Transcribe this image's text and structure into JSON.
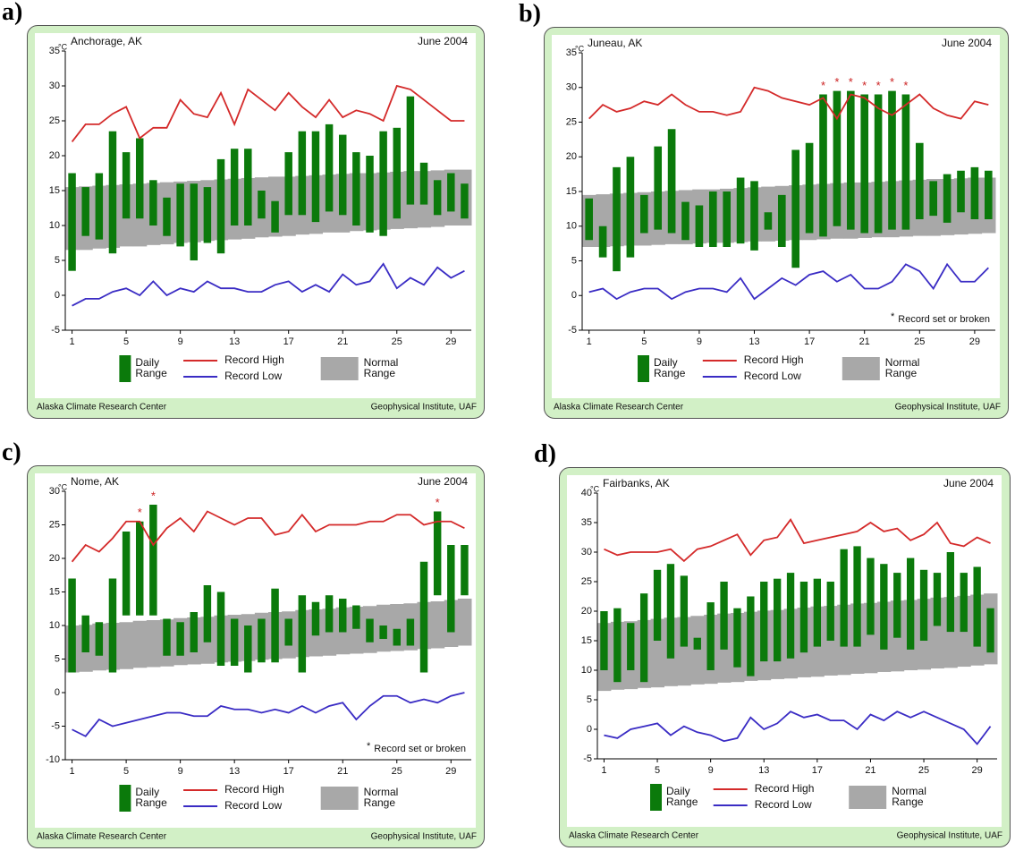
{
  "chart_data": [
    {
      "type": "range",
      "panel": "a)",
      "title": "Anchorage, AK",
      "date": "June 2004",
      "unit": "°C",
      "x": [
        1,
        2,
        3,
        4,
        5,
        6,
        7,
        8,
        9,
        10,
        11,
        12,
        13,
        14,
        15,
        16,
        17,
        18,
        19,
        20,
        21,
        22,
        23,
        24,
        25,
        26,
        27,
        28,
        29,
        30
      ],
      "xlim": [
        0.5,
        30.5
      ],
      "xticks": [
        1,
        5,
        9,
        13,
        17,
        21,
        25,
        29
      ],
      "ylim": [
        -5,
        35
      ],
      "yticks": [
        -5,
        0,
        5,
        10,
        15,
        20,
        25,
        30,
        35
      ],
      "series": [
        {
          "name": "Daily Range",
          "color": "#0b7a0b",
          "low": [
            3.5,
            8.5,
            8,
            6,
            11,
            11,
            10,
            8.5,
            7,
            5,
            7.5,
            6,
            10,
            10,
            11,
            9,
            11.5,
            11.5,
            10.5,
            12,
            11.5,
            10,
            9,
            8.5,
            11,
            13,
            13,
            11.5,
            12,
            11
          ],
          "high": [
            17.5,
            15.5,
            17.5,
            23.5,
            20.5,
            22.5,
            16.5,
            14,
            16,
            16,
            15.5,
            19.5,
            21,
            21,
            15,
            13.5,
            20.5,
            23.5,
            23.5,
            24.5,
            23,
            20.5,
            20,
            23.5,
            24,
            28.5,
            19,
            16.5,
            17.5,
            16
          ]
        },
        {
          "name": "Record High",
          "color": "#d42a2a",
          "values": [
            22,
            24.5,
            24.5,
            26,
            27,
            22.5,
            24,
            24,
            28,
            26,
            25.5,
            29,
            24.5,
            29.5,
            28,
            26.5,
            29,
            27,
            25.5,
            28,
            25.5,
            26.5,
            26,
            25,
            30,
            29.5,
            28,
            26.5,
            25,
            25
          ]
        },
        {
          "name": "Record Low",
          "color": "#3a2cc4",
          "values": [
            -1.5,
            -0.5,
            -0.5,
            0.5,
            1,
            0,
            2,
            0,
            1,
            0.5,
            2,
            1,
            1,
            0.5,
            0.5,
            1.5,
            2,
            0.5,
            1.5,
            0.5,
            3,
            1.5,
            2,
            4.5,
            1,
            2.5,
            1.5,
            4,
            2.5,
            3.5
          ]
        },
        {
          "name": "Normal Range",
          "color": "#a8a8a8",
          "low": [
            6.5,
            6.5,
            6.7,
            6.8,
            7,
            7,
            7.2,
            7.3,
            7.5,
            7.6,
            7.8,
            7.9,
            8,
            8.1,
            8.3,
            8.4,
            8.5,
            8.7,
            8.8,
            9,
            9,
            9.2,
            9.3,
            9.4,
            9.5,
            9.6,
            9.7,
            9.8,
            10,
            10
          ],
          "high": [
            15.5,
            15.6,
            15.7,
            15.8,
            15.9,
            16,
            16.1,
            16.2,
            16.3,
            16.4,
            16.5,
            16.6,
            16.7,
            16.8,
            16.9,
            17,
            17,
            17.1,
            17.2,
            17.3,
            17.4,
            17.5,
            17.5,
            17.6,
            17.7,
            17.8,
            17.8,
            17.9,
            18,
            18
          ]
        }
      ],
      "footer_left": "Alaska Climate Research Center",
      "footer_right": "Geophysical Institute, UAF"
    },
    {
      "type": "range",
      "panel": "b)",
      "title": "Juneau, AK",
      "date": "June 2004",
      "unit": "°C",
      "x": [
        1,
        2,
        3,
        4,
        5,
        6,
        7,
        8,
        9,
        10,
        11,
        12,
        13,
        14,
        15,
        16,
        17,
        18,
        19,
        20,
        21,
        22,
        23,
        24,
        25,
        26,
        27,
        28,
        29,
        30
      ],
      "xlim": [
        0.5,
        30.5
      ],
      "xticks": [
        1,
        5,
        9,
        13,
        17,
        21,
        25,
        29
      ],
      "ylim": [
        -5,
        35
      ],
      "yticks": [
        -5,
        0,
        5,
        10,
        15,
        20,
        25,
        30,
        35
      ],
      "series": [
        {
          "name": "Daily Range",
          "color": "#0b7a0b",
          "low": [
            8,
            5.5,
            3.5,
            5.5,
            9,
            9.5,
            9,
            8,
            7,
            7,
            7,
            7.5,
            6.5,
            9.5,
            7,
            4,
            9,
            8.5,
            10,
            9.5,
            9,
            9,
            9.5,
            9.5,
            11,
            11.5,
            10.5,
            12,
            11,
            11
          ],
          "high": [
            14,
            10,
            18.5,
            20,
            14.5,
            21.5,
            24,
            13.5,
            13,
            15,
            15,
            17,
            16.5,
            12,
            14.5,
            21,
            22,
            29,
            29.5,
            29.5,
            29,
            29,
            29.5,
            29,
            22,
            16.5,
            17.5,
            18,
            18.5,
            18
          ]
        },
        {
          "name": "Record High",
          "color": "#d42a2a",
          "values": [
            25.5,
            27.5,
            26.5,
            27,
            28,
            27.5,
            29,
            27.5,
            26.5,
            26.5,
            26,
            26.5,
            30,
            29.5,
            28.5,
            28,
            27.5,
            28.5,
            25.5,
            29,
            28.5,
            27,
            26,
            27.5,
            29,
            27,
            26,
            25.5,
            28,
            27.5
          ]
        },
        {
          "name": "Record Low",
          "color": "#3a2cc4",
          "values": [
            0.5,
            1,
            -0.5,
            0.5,
            1,
            1,
            -0.5,
            0.5,
            1,
            1,
            0.5,
            2.5,
            -0.5,
            1,
            2.5,
            1.5,
            3,
            3.5,
            2,
            3,
            1,
            1,
            2,
            4.5,
            3.5,
            1,
            4.5,
            2,
            2,
            4
          ]
        },
        {
          "name": "Normal Range",
          "color": "#a8a8a8",
          "low": [
            7,
            7,
            7.1,
            7.2,
            7.2,
            7.3,
            7.4,
            7.4,
            7.5,
            7.6,
            7.6,
            7.7,
            7.8,
            7.8,
            7.9,
            8,
            8,
            8.1,
            8.2,
            8.2,
            8.3,
            8.4,
            8.4,
            8.5,
            8.6,
            8.6,
            8.7,
            8.8,
            8.9,
            9
          ],
          "high": [
            14.5,
            14.6,
            14.7,
            14.8,
            14.9,
            15,
            15.1,
            15.2,
            15.3,
            15.3,
            15.4,
            15.5,
            15.6,
            15.7,
            15.8,
            15.9,
            16,
            16.1,
            16.2,
            16.3,
            16.3,
            16.4,
            16.5,
            16.6,
            16.7,
            16.8,
            16.8,
            16.9,
            17,
            17
          ]
        }
      ],
      "record_symbol": "*",
      "record_days": [
        18,
        19,
        20,
        21,
        22,
        23,
        24
      ],
      "note": "Record set or broken",
      "footer_left": "Alaska Climate Research Center",
      "footer_right": "Geophysical Institute, UAF"
    },
    {
      "type": "range",
      "panel": "c)",
      "title": "Nome, AK",
      "date": "June 2004",
      "unit": "°C",
      "x": [
        1,
        2,
        3,
        4,
        5,
        6,
        7,
        8,
        9,
        10,
        11,
        12,
        13,
        14,
        15,
        16,
        17,
        18,
        19,
        20,
        21,
        22,
        23,
        24,
        25,
        26,
        27,
        28,
        29,
        30
      ],
      "xlim": [
        0.5,
        30.5
      ],
      "xticks": [
        1,
        5,
        9,
        13,
        17,
        21,
        25,
        29
      ],
      "ylim": [
        -10,
        30
      ],
      "yticks": [
        -10,
        -5,
        0,
        5,
        10,
        15,
        20,
        25,
        30
      ],
      "series": [
        {
          "name": "Daily Range",
          "color": "#0b7a0b",
          "low": [
            3,
            6,
            5.5,
            3,
            11.5,
            11.5,
            11.5,
            5.5,
            5.5,
            6,
            7.5,
            4,
            4,
            3,
            4.5,
            4.5,
            7,
            3,
            8.5,
            9,
            9,
            9.5,
            7.5,
            8,
            7,
            7,
            3,
            14.5,
            9,
            14.5
          ],
          "high": [
            17,
            11.5,
            10.5,
            17,
            24,
            25.5,
            28,
            11,
            10.5,
            12,
            16,
            15,
            11,
            10,
            11,
            15.5,
            11,
            14.5,
            13.5,
            14.5,
            14,
            13,
            11,
            10,
            9.5,
            11,
            19.5,
            27,
            22,
            22
          ]
        },
        {
          "name": "Record High",
          "color": "#d42a2a",
          "values": [
            19.5,
            22,
            21,
            23,
            25.5,
            25.5,
            22,
            24.5,
            26,
            24,
            27,
            26,
            25,
            26,
            26,
            23.5,
            24,
            26.5,
            24,
            25,
            25,
            25,
            25.5,
            25.5,
            26.5,
            26.5,
            25,
            25.5,
            25.5,
            24.5
          ]
        },
        {
          "name": "Record Low",
          "color": "#3a2cc4",
          "values": [
            -5.5,
            -6.5,
            -4,
            -5,
            -4.5,
            -4,
            -3.5,
            -3,
            -3,
            -3.5,
            -3.5,
            -2,
            -2.5,
            -2.5,
            -3,
            -2.5,
            -3,
            -2,
            -3,
            -2,
            -1.5,
            -4,
            -2,
            -0.5,
            -0.5,
            -1.5,
            -1,
            -1.5,
            -0.5,
            0
          ]
        },
        {
          "name": "Normal Range",
          "color": "#a8a8a8",
          "low": [
            3,
            3.1,
            3.3,
            3.4,
            3.5,
            3.7,
            3.8,
            3.9,
            4.1,
            4.2,
            4.3,
            4.5,
            4.6,
            4.7,
            4.9,
            5,
            5.1,
            5.3,
            5.4,
            5.5,
            5.7,
            5.8,
            5.9,
            6.1,
            6.2,
            6.3,
            6.5,
            6.6,
            6.8,
            7
          ],
          "high": [
            10,
            10.1,
            10.3,
            10.4,
            10.5,
            10.7,
            10.8,
            10.9,
            11.1,
            11.2,
            11.3,
            11.5,
            11.6,
            11.7,
            11.9,
            12,
            12.1,
            12.3,
            12.4,
            12.5,
            12.7,
            12.8,
            12.9,
            13.1,
            13.2,
            13.3,
            13.5,
            13.6,
            13.8,
            14
          ]
        }
      ],
      "record_symbol": "*",
      "record_days": [
        6,
        7,
        28
      ],
      "note": "Record set or broken",
      "footer_left": "Alaska Climate Research Center",
      "footer_right": "Geophysical Institute, UAF"
    },
    {
      "type": "range",
      "panel": "d)",
      "title": "Fairbanks, AK",
      "date": "June 2004",
      "unit": "°C",
      "x": [
        1,
        2,
        3,
        4,
        5,
        6,
        7,
        8,
        9,
        10,
        11,
        12,
        13,
        14,
        15,
        16,
        17,
        18,
        19,
        20,
        21,
        22,
        23,
        24,
        25,
        26,
        27,
        28,
        29,
        30
      ],
      "xlim": [
        0.5,
        30.5
      ],
      "xticks": [
        1,
        5,
        9,
        13,
        17,
        21,
        25,
        29
      ],
      "ylim": [
        -5,
        40
      ],
      "yticks": [
        -5,
        0,
        5,
        10,
        15,
        20,
        25,
        30,
        35,
        40
      ],
      "series": [
        {
          "name": "Daily Range",
          "color": "#0b7a0b",
          "low": [
            10,
            8,
            10,
            8,
            15,
            12,
            14,
            13.5,
            10,
            13.5,
            10.5,
            9,
            11.5,
            11.5,
            12,
            13,
            14,
            15,
            14,
            14,
            16,
            13.5,
            15.5,
            13.5,
            15,
            17.5,
            16.5,
            16.5,
            14,
            13
          ],
          "high": [
            20,
            20.5,
            18,
            23,
            27,
            28,
            26,
            15.5,
            21.5,
            25,
            20.5,
            22.5,
            25,
            25.5,
            26.5,
            25,
            25.5,
            25,
            30.5,
            31,
            29,
            28,
            26.5,
            29,
            27,
            26.5,
            30,
            26.5,
            27.5,
            20.5
          ]
        },
        {
          "name": "Record High",
          "color": "#d42a2a",
          "values": [
            30.5,
            29.5,
            30,
            30,
            30,
            30.5,
            28.5,
            30.5,
            31,
            32,
            33,
            29.5,
            32,
            32.5,
            35.5,
            31.5,
            32,
            32.5,
            33,
            33.5,
            35,
            33.5,
            34,
            32,
            33,
            35,
            31.5,
            31,
            32.5,
            31.5
          ]
        },
        {
          "name": "Record Low",
          "color": "#3a2cc4",
          "values": [
            -1,
            -1.5,
            0,
            0.5,
            1,
            -1,
            0.5,
            -0.5,
            -1,
            -2,
            -1.5,
            2,
            0,
            1,
            3,
            2,
            2.5,
            1.5,
            1.5,
            0,
            2.5,
            1.5,
            3,
            2,
            3,
            2,
            1,
            0,
            -2.5,
            0.5
          ]
        },
        {
          "name": "Normal Range",
          "color": "#a8a8a8",
          "low": [
            6.5,
            6.7,
            6.8,
            7,
            7.1,
            7.3,
            7.4,
            7.6,
            7.7,
            7.9,
            8,
            8.2,
            8.3,
            8.5,
            8.6,
            8.8,
            8.9,
            9.1,
            9.2,
            9.4,
            9.5,
            9.7,
            9.8,
            10,
            10.1,
            10.3,
            10.4,
            10.6,
            10.8,
            11
          ],
          "high": [
            18,
            18.2,
            18.3,
            18.5,
            18.7,
            18.9,
            19,
            19.2,
            19.4,
            19.6,
            19.7,
            19.9,
            20.1,
            20.2,
            20.4,
            20.6,
            20.8,
            20.9,
            21.1,
            21.3,
            21.4,
            21.6,
            21.8,
            21.9,
            22.1,
            22.3,
            22.4,
            22.6,
            22.8,
            23
          ]
        }
      ],
      "footer_left": "Alaska Climate Research Center",
      "footer_right": "Geophysical Institute, UAF"
    }
  ]
}
